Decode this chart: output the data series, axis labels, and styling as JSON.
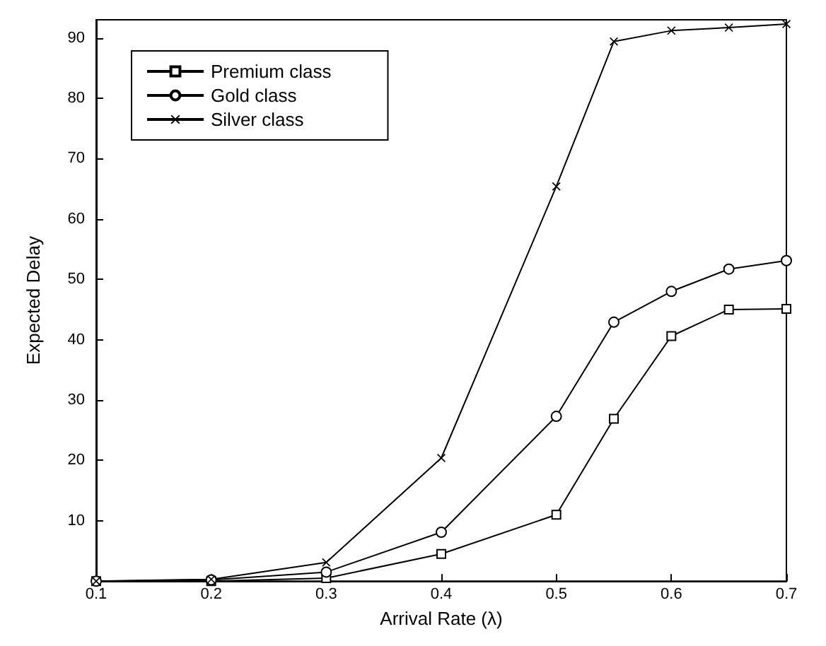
{
  "chart_data": {
    "type": "line",
    "xlabel": "Arrival Rate (λ)",
    "ylabel": "Expected Delay",
    "x": [
      0.1,
      0.2,
      0.3,
      0.4,
      0.5,
      0.55,
      0.6,
      0.65,
      0.7
    ],
    "series": [
      {
        "name": "Premium class",
        "color": "#000000",
        "marker": "square",
        "values": [
          0,
          0,
          0.5,
          4.5,
          11,
          26.9,
          40.6,
          45,
          45.1
        ]
      },
      {
        "name": "Gold class",
        "color": "#000000",
        "marker": "circle",
        "values": [
          0,
          0.2,
          1.5,
          8.1,
          27.3,
          42.9,
          48,
          51.7,
          53.1
        ]
      },
      {
        "name": "Silver class",
        "color": "#000000",
        "marker": "cross",
        "values": [
          0,
          0.3,
          3.1,
          20.4,
          65.4,
          89.4,
          91.2,
          91.7,
          92.3
        ]
      }
    ],
    "xlim": [
      0.1,
      0.7
    ],
    "xticks": [
      0.1,
      0.2,
      0.3,
      0.4,
      0.5,
      0.6,
      0.7
    ],
    "ylim": [
      0,
      93
    ],
    "yticks": [
      10,
      20,
      30,
      40,
      50,
      60,
      70,
      80,
      90
    ],
    "grid": false,
    "legend": "top left",
    "line_style": "solid"
  }
}
